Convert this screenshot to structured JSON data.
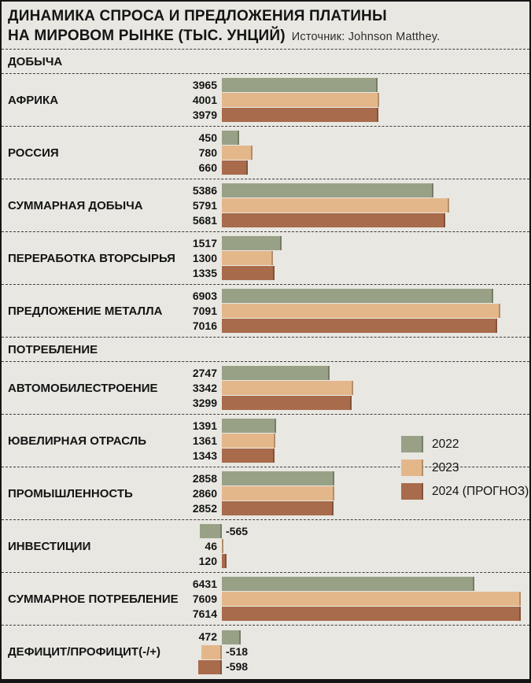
{
  "header": {
    "title_line1": "ДИНАМИКА СПРОСА И ПРЕДЛОЖЕНИЯ ПЛАТИНЫ",
    "title_line2": "НА МИРОВОМ РЫНКЕ (ТЫС. УНЦИЙ)",
    "source": "Источник: Johnson Matthey."
  },
  "chart_data": {
    "type": "bar",
    "orientation": "horizontal",
    "units": "тыс. унций",
    "grid": false,
    "legend_position": "middle-right",
    "xmax": 7614,
    "series": [
      {
        "key": "2022",
        "name": "2022",
        "color": "#98a186"
      },
      {
        "key": "2023",
        "name": "2023",
        "color": "#e4b78a"
      },
      {
        "key": "2024-forecast",
        "name": "2024 (ПРОГНОЗ)",
        "color": "#a86b4b"
      }
    ],
    "sections": [
      {
        "label": "ДОБЫЧА",
        "rows": [
          {
            "label": "АФРИКА",
            "values": [
              3965,
              4001,
              3979
            ]
          },
          {
            "label": "РОССИЯ",
            "values": [
              450,
              780,
              660
            ]
          },
          {
            "label": "СУММАРНАЯ ДОБЫЧА",
            "values": [
              5386,
              5791,
              5681
            ]
          },
          {
            "label": "ПЕРЕРАБОТКА ВТОРСЫРЬЯ",
            "values": [
              1517,
              1300,
              1335
            ]
          },
          {
            "label": "ПРЕДЛОЖЕНИЕ МЕТАЛЛА",
            "values": [
              6903,
              7091,
              7016
            ]
          }
        ]
      },
      {
        "label": "ПОТРЕБЛЕНИЕ",
        "rows": [
          {
            "label": "АВТОМОБИЛЕСТРОЕНИЕ",
            "values": [
              2747,
              3342,
              3299
            ]
          },
          {
            "label": "ЮВЕЛИРНАЯ ОТРАСЛЬ",
            "values": [
              1391,
              1361,
              1343
            ]
          },
          {
            "label": "ПРОМЫШЛЕННОСТЬ",
            "values": [
              2858,
              2860,
              2852
            ]
          },
          {
            "label": "ИНВЕСТИЦИИ",
            "values": [
              -565,
              46,
              120
            ]
          },
          {
            "label": "СУММАРНОЕ ПОТРЕБЛЕНИЕ",
            "values": [
              6431,
              7609,
              7614
            ]
          },
          {
            "label": "ДЕФИЦИТ/ПРОФИЦИТ(-/+)",
            "values": [
              472,
              -518,
              -598
            ]
          }
        ]
      }
    ]
  },
  "style": {
    "background": "#e8e7e2",
    "border_color": "#151515",
    "text_color": "#141414"
  }
}
